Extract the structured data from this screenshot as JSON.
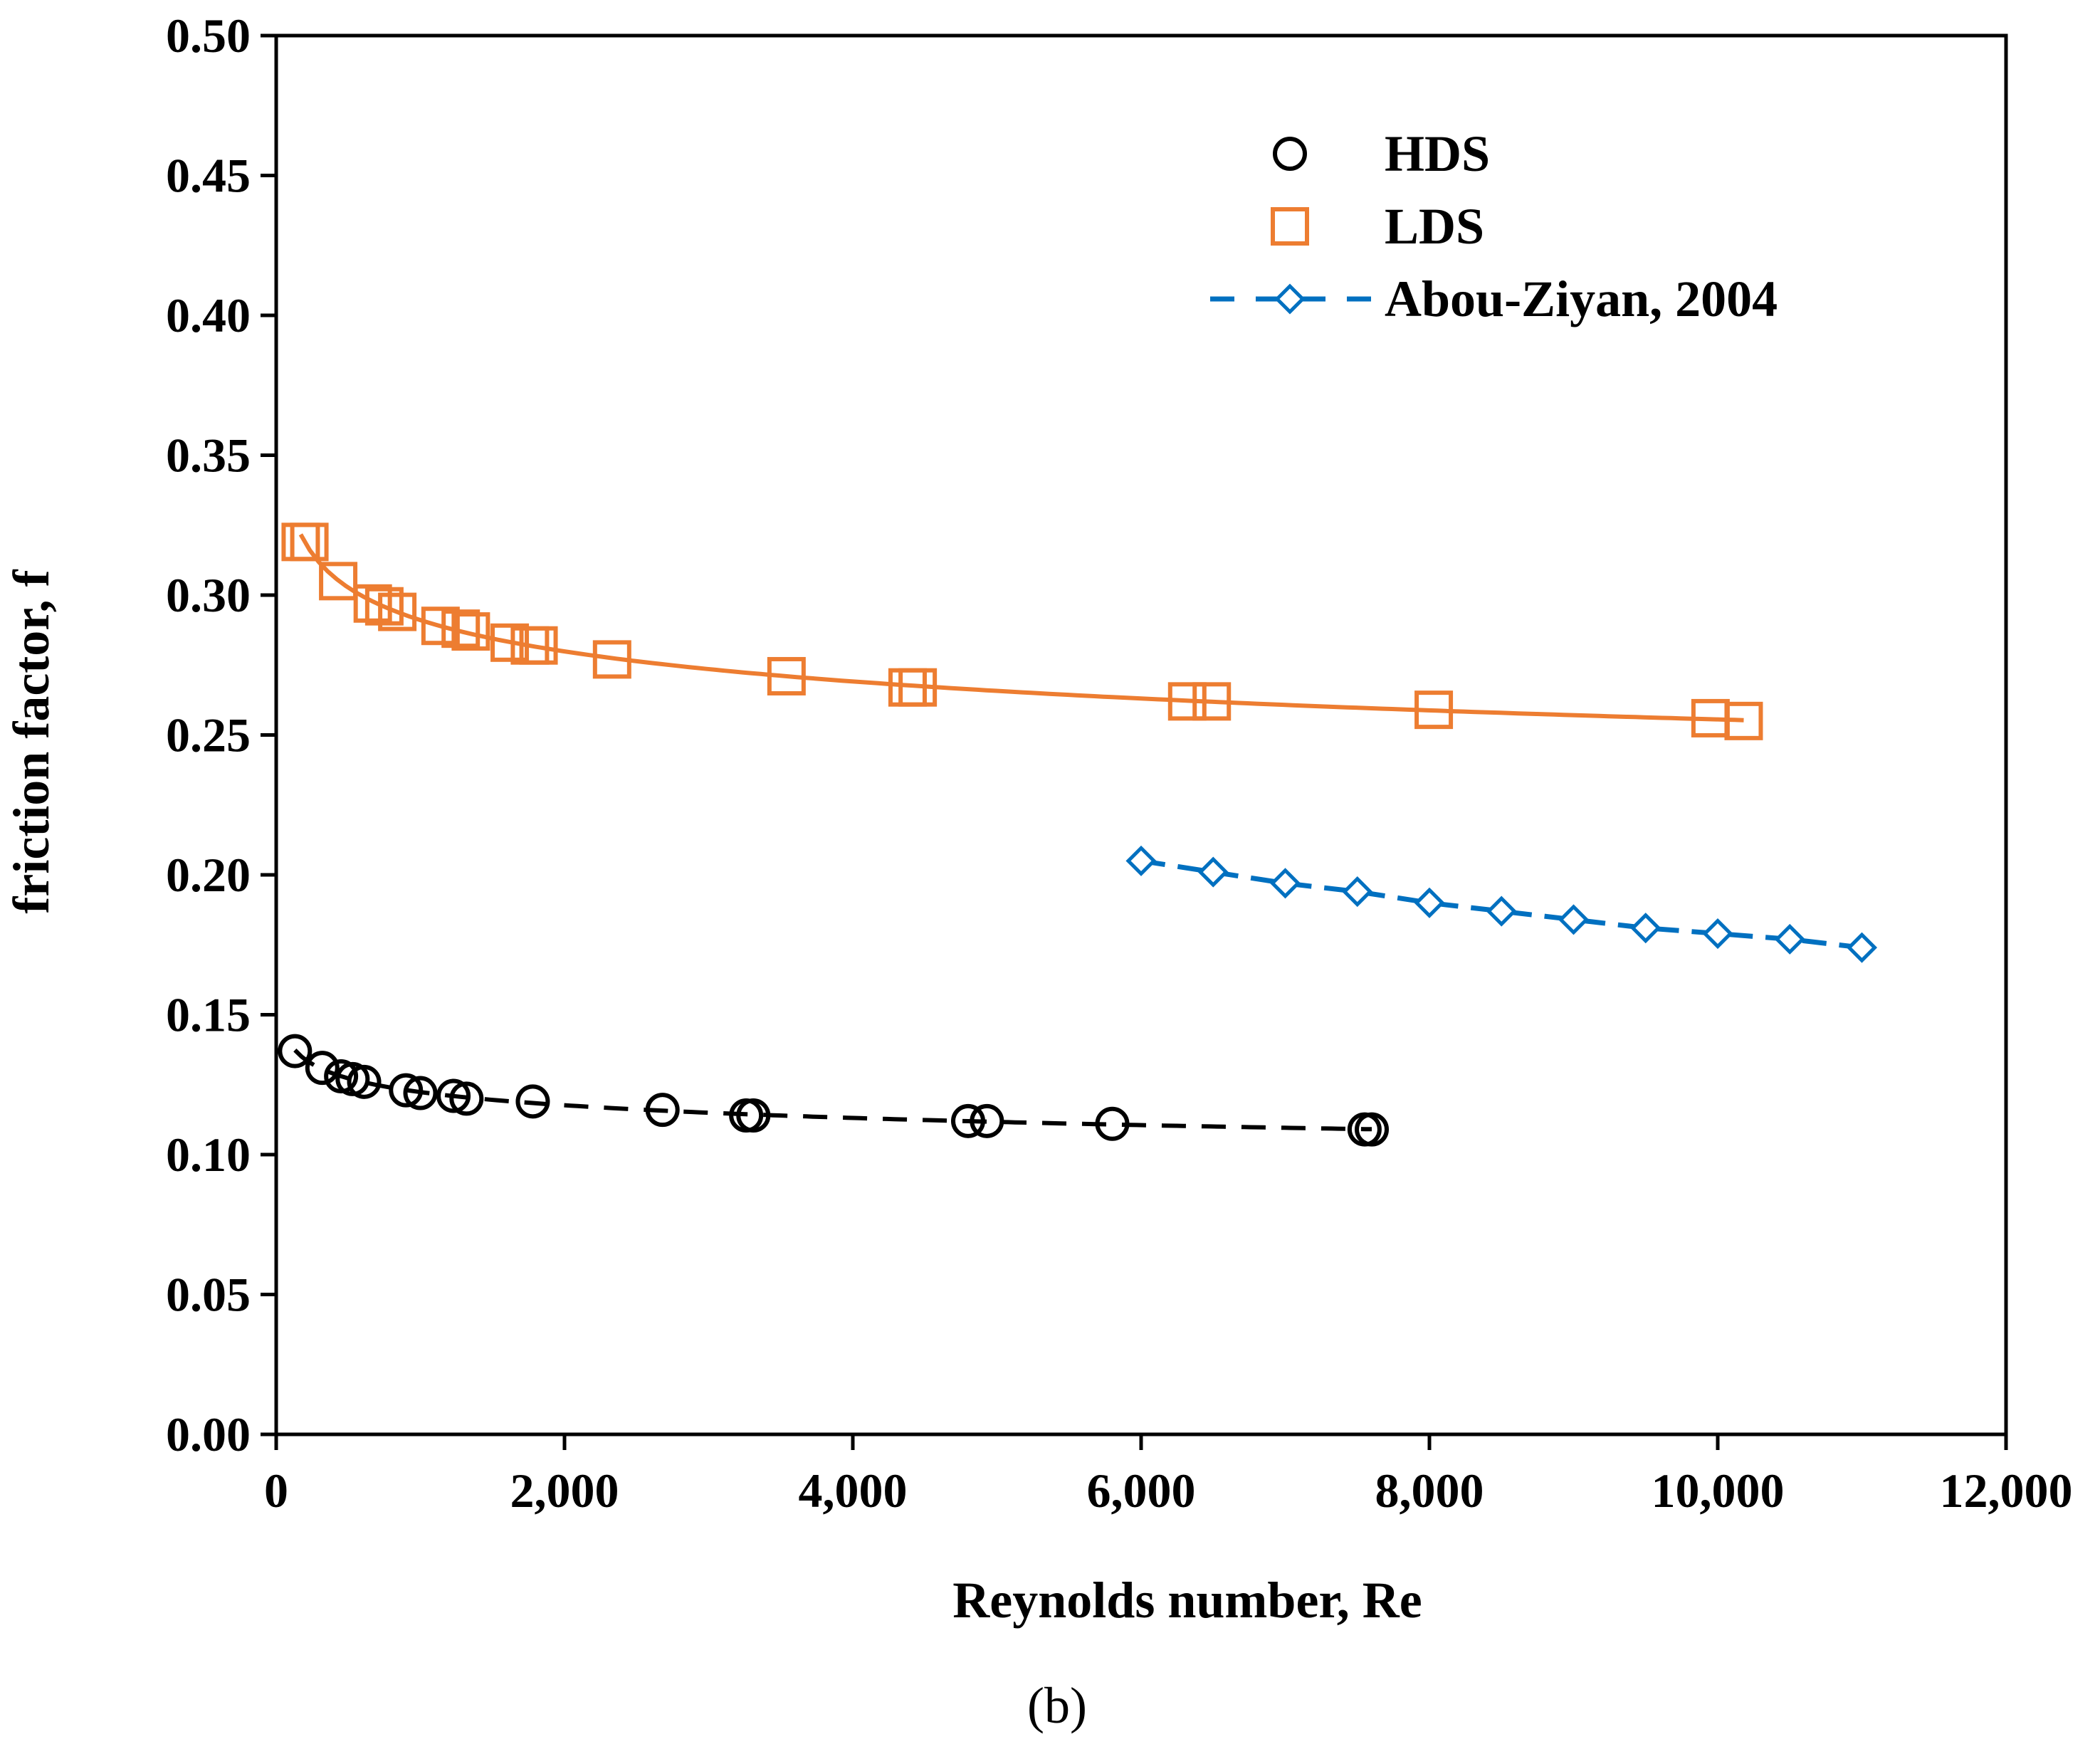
{
  "chart_data": {
    "type": "scatter",
    "xlabel": "Reynolds number, Re",
    "ylabel": "friction factor, f",
    "caption": "(b)",
    "xlim": [
      0,
      12000
    ],
    "ylim": [
      0,
      0.5
    ],
    "x_ticks": [
      0,
      2000,
      4000,
      6000,
      8000,
      10000,
      12000
    ],
    "x_tick_labels": [
      "0",
      "2,000",
      "4,000",
      "6,000",
      "8,000",
      "10,000",
      "12,000"
    ],
    "y_ticks": [
      0,
      0.05,
      0.1,
      0.15,
      0.2,
      0.25,
      0.3,
      0.35,
      0.4,
      0.45,
      0.5
    ],
    "y_tick_labels": [
      "0.00",
      "0.05",
      "0.10",
      "0.15",
      "0.20",
      "0.25",
      "0.30",
      "0.35",
      "0.40",
      "0.45",
      "0.50"
    ],
    "grid": false,
    "legend_position": "top-right",
    "series": [
      {
        "name": "HDS",
        "marker": "circle",
        "color": "#000000",
        "fit_line": "dashed",
        "x": [
          130,
          320,
          450,
          530,
          610,
          900,
          1000,
          1230,
          1320,
          1780,
          2680,
          3260,
          3310,
          4800,
          4930,
          5800,
          7550,
          7600
        ],
        "y": [
          0.137,
          0.131,
          0.128,
          0.127,
          0.126,
          0.123,
          0.122,
          0.121,
          0.12,
          0.119,
          0.116,
          0.114,
          0.114,
          0.112,
          0.112,
          0.111,
          0.109,
          0.109
        ]
      },
      {
        "name": "LDS",
        "marker": "square",
        "color": "#ED7D31",
        "fit_line": "solid",
        "x": [
          170,
          230,
          430,
          670,
          750,
          840,
          1140,
          1280,
          1350,
          1620,
          1760,
          1820,
          2330,
          3540,
          4380,
          4450,
          6320,
          6490,
          8030,
          9950,
          10180
        ],
        "y": [
          0.319,
          0.319,
          0.305,
          0.297,
          0.296,
          0.294,
          0.289,
          0.288,
          0.287,
          0.283,
          0.282,
          0.282,
          0.277,
          0.271,
          0.267,
          0.267,
          0.262,
          0.262,
          0.259,
          0.256,
          0.255
        ]
      },
      {
        "name": "Abou-Ziyan, 2004",
        "marker": "diamond",
        "color": "#0070C0",
        "fit_line": "dashed-through-points",
        "x": [
          6000,
          6500,
          7000,
          7500,
          8000,
          8500,
          9000,
          9500,
          10000,
          10500,
          11000
        ],
        "y": [
          0.205,
          0.201,
          0.197,
          0.194,
          0.19,
          0.187,
          0.184,
          0.181,
          0.179,
          0.177,
          0.174
        ]
      }
    ]
  }
}
